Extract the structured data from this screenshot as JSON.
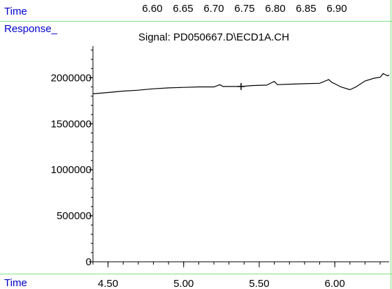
{
  "top_axis": {
    "label": "Time",
    "ticks": [
      "6.60",
      "6.65",
      "6.70",
      "6.75",
      "6.80",
      "6.85",
      "6.90"
    ]
  },
  "chart_data": {
    "type": "line",
    "title": "Signal: PD050667.D\\ECD1A.CH",
    "ylabel": "Response_",
    "xlabel": "Time",
    "xlim": [
      4.4,
      6.36
    ],
    "ylim": [
      0,
      2420000
    ],
    "x_ticks": [
      "4.50",
      "5.00",
      "5.50",
      "6.00"
    ],
    "x_tick_values": [
      4.5,
      5.0,
      5.5,
      6.0
    ],
    "y_ticks": [
      "0",
      "500000",
      "1000000",
      "1500000",
      "2000000"
    ],
    "y_tick_values": [
      0,
      500000,
      1000000,
      1500000,
      2000000
    ],
    "grid": false,
    "marker": {
      "x": 5.38,
      "y": 1905000
    },
    "series": [
      {
        "x": [
          4.4,
          4.5,
          4.6,
          4.7,
          4.8,
          4.9,
          5.0,
          5.1,
          5.2,
          5.24,
          5.26,
          5.3,
          5.38,
          5.45,
          5.55,
          5.6,
          5.62,
          5.7,
          5.8,
          5.9,
          5.96,
          5.98,
          6.0,
          6.04,
          6.1,
          6.14,
          6.2,
          6.26,
          6.3,
          6.32,
          6.35,
          6.36
        ],
        "y": [
          1825000,
          1840000,
          1855000,
          1865000,
          1880000,
          1890000,
          1895000,
          1900000,
          1900000,
          1925000,
          1905000,
          1905000,
          1905000,
          1915000,
          1920000,
          1960000,
          1925000,
          1930000,
          1935000,
          1940000,
          1980000,
          1950000,
          1935000,
          1900000,
          1870000,
          1900000,
          1965000,
          1995000,
          2005000,
          2045000,
          2020000,
          2030000
        ]
      }
    ]
  },
  "colors": {
    "axis_label": "#0000cc",
    "frame_line": "#80e080",
    "trace": "#000000"
  }
}
